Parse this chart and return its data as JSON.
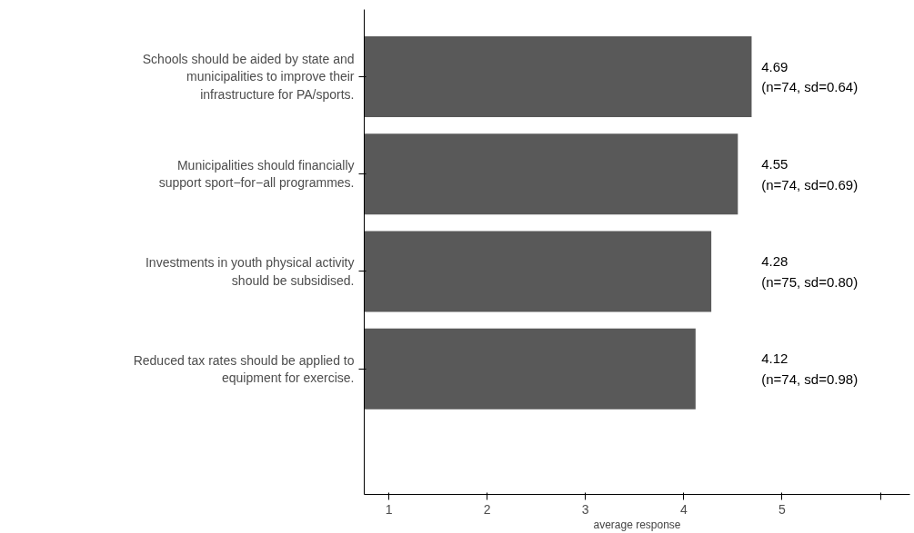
{
  "chart_data": {
    "type": "bar",
    "orientation": "horizontal",
    "xlabel": "average response",
    "categories": [
      "Schools should be aided by state and\nmunicipalities to improve their\ninfrastructure for PA/sports.",
      "Municipalities should financially\nsupport sport−for−all programmes.",
      "Investments in youth physical activity\nshould be subsidised.",
      "Reduced tax rates should be applied to\nequipment for exercise."
    ],
    "values": [
      4.69,
      4.55,
      4.28,
      4.12
    ],
    "value_labels": [
      "4.69\n(n=74, sd=0.64)",
      "4.55\n(n=74, sd=0.69)",
      "4.28\n(n=75, sd=0.80)",
      "4.12\n(n=74, sd=0.98)"
    ],
    "color": "#595959",
    "xlim": [
      0.75,
      6.3
    ],
    "xticks": [
      1,
      2,
      3,
      4,
      5,
      {
        "value": 6,
        "label": null
      }
    ],
    "grid": false
  }
}
